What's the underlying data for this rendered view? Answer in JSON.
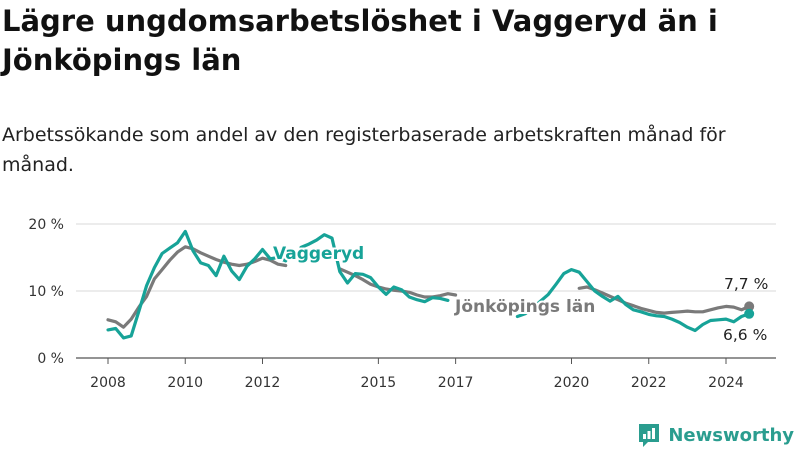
{
  "title": "Lägre ungdomsarbetslöshet i Vaggeryd än i Jönköpings län",
  "subtitle": "Arbetssökande som andel av den registerbaserade arbetskraften månad för månad.",
  "brand": "Newsworthy",
  "colors": {
    "vaggeryd": "#17a398",
    "lan": "#7a7a7a",
    "grid": "#d9d9d9",
    "brand": "#2a9d8f"
  },
  "chart_data": {
    "type": "line",
    "title": "Lägre ungdomsarbetslöshet i Vaggeryd än i Jönköpings län",
    "ylabel": "",
    "xlabel": "",
    "ylim": [
      0,
      20
    ],
    "xlim": [
      2007.7,
      2025.0
    ],
    "y_ticks": [
      0,
      10,
      20
    ],
    "y_tick_labels": [
      "0 %",
      "10 %",
      "20 %"
    ],
    "x_ticks": [
      2008,
      2010,
      2012,
      2015,
      2017,
      2020,
      2022,
      2024
    ],
    "x_tick_labels": [
      "2008",
      "2010",
      "2012",
      "2015",
      "2017",
      "2020",
      "2022",
      "2024"
    ],
    "grid": true,
    "series": [
      {
        "name": "Jönköpings län",
        "label": "Jönköpings län",
        "end_label": "7,7 %",
        "points": [
          [
            2008.0,
            5.7
          ],
          [
            2008.2,
            5.4
          ],
          [
            2008.4,
            4.6
          ],
          [
            2008.6,
            5.8
          ],
          [
            2008.8,
            7.6
          ],
          [
            2009.0,
            9.2
          ],
          [
            2009.2,
            11.8
          ],
          [
            2009.4,
            13.2
          ],
          [
            2009.6,
            14.6
          ],
          [
            2009.8,
            15.8
          ],
          [
            2010.0,
            16.6
          ],
          [
            2010.2,
            16.3
          ],
          [
            2010.4,
            15.7
          ],
          [
            2010.6,
            15.2
          ],
          [
            2010.8,
            14.7
          ],
          [
            2011.0,
            14.3
          ],
          [
            2011.2,
            14.0
          ],
          [
            2011.4,
            13.8
          ],
          [
            2011.6,
            14.0
          ],
          [
            2011.8,
            14.4
          ],
          [
            2012.0,
            14.9
          ],
          [
            2012.2,
            14.6
          ],
          [
            2012.4,
            14.0
          ],
          [
            2012.6,
            13.8
          ],
          [
            2014.0,
            13.3
          ],
          [
            2014.2,
            12.8
          ],
          [
            2014.4,
            12.3
          ],
          [
            2014.6,
            11.7
          ],
          [
            2014.8,
            11.0
          ],
          [
            2015.0,
            10.6
          ],
          [
            2015.2,
            10.3
          ],
          [
            2015.4,
            10.1
          ],
          [
            2015.6,
            10.0
          ],
          [
            2015.8,
            9.8
          ],
          [
            2016.0,
            9.4
          ],
          [
            2016.2,
            9.1
          ],
          [
            2016.4,
            9.1
          ],
          [
            2016.6,
            9.3
          ],
          [
            2016.8,
            9.6
          ],
          [
            2017.0,
            9.4
          ],
          [
            2020.2,
            10.4
          ],
          [
            2020.4,
            10.6
          ],
          [
            2020.6,
            10.2
          ],
          [
            2020.8,
            9.7
          ],
          [
            2021.0,
            9.2
          ],
          [
            2021.2,
            8.7
          ],
          [
            2021.4,
            8.2
          ],
          [
            2021.6,
            7.8
          ],
          [
            2021.8,
            7.4
          ],
          [
            2022.0,
            7.1
          ],
          [
            2022.2,
            6.8
          ],
          [
            2022.4,
            6.7
          ],
          [
            2022.6,
            6.8
          ],
          [
            2022.8,
            6.9
          ],
          [
            2023.0,
            7.0
          ],
          [
            2023.2,
            6.9
          ],
          [
            2023.4,
            6.9
          ],
          [
            2023.6,
            7.2
          ],
          [
            2023.8,
            7.5
          ],
          [
            2024.0,
            7.7
          ],
          [
            2024.2,
            7.6
          ],
          [
            2024.4,
            7.2
          ],
          [
            2024.6,
            7.7
          ]
        ]
      },
      {
        "name": "Vaggeryd",
        "label": "Vaggeryd",
        "end_label": "6,6 %",
        "points": [
          [
            2008.0,
            4.2
          ],
          [
            2008.2,
            4.4
          ],
          [
            2008.4,
            3.0
          ],
          [
            2008.6,
            3.3
          ],
          [
            2008.8,
            7.0
          ],
          [
            2009.0,
            10.8
          ],
          [
            2009.2,
            13.5
          ],
          [
            2009.4,
            15.6
          ],
          [
            2009.6,
            16.4
          ],
          [
            2009.8,
            17.2
          ],
          [
            2010.0,
            18.9
          ],
          [
            2010.2,
            16.0
          ],
          [
            2010.4,
            14.2
          ],
          [
            2010.6,
            13.8
          ],
          [
            2010.8,
            12.3
          ],
          [
            2011.0,
            15.2
          ],
          [
            2011.2,
            13.0
          ],
          [
            2011.4,
            11.7
          ],
          [
            2011.6,
            13.7
          ],
          [
            2011.8,
            14.8
          ],
          [
            2012.0,
            16.2
          ],
          [
            2012.2,
            14.8
          ],
          [
            2012.4,
            15.0
          ],
          [
            2012.6,
            14.5
          ],
          [
            2013.0,
            16.5
          ],
          [
            2013.2,
            17.0
          ],
          [
            2013.4,
            17.6
          ],
          [
            2013.6,
            18.4
          ],
          [
            2013.8,
            17.9
          ],
          [
            2014.0,
            12.9
          ],
          [
            2014.2,
            11.2
          ],
          [
            2014.4,
            12.6
          ],
          [
            2014.6,
            12.5
          ],
          [
            2014.8,
            12.0
          ],
          [
            2015.0,
            10.6
          ],
          [
            2015.2,
            9.5
          ],
          [
            2015.4,
            10.6
          ],
          [
            2015.6,
            10.2
          ],
          [
            2015.8,
            9.1
          ],
          [
            2016.0,
            8.7
          ],
          [
            2016.2,
            8.4
          ],
          [
            2016.4,
            9.0
          ],
          [
            2016.6,
            8.9
          ],
          [
            2016.8,
            8.6
          ],
          [
            2018.6,
            6.2
          ],
          [
            2018.8,
            6.6
          ],
          [
            2019.0,
            7.5
          ],
          [
            2019.2,
            8.5
          ],
          [
            2019.4,
            9.5
          ],
          [
            2019.6,
            11.0
          ],
          [
            2019.8,
            12.6
          ],
          [
            2020.0,
            13.2
          ],
          [
            2020.2,
            12.8
          ],
          [
            2020.4,
            11.4
          ],
          [
            2020.6,
            10.0
          ],
          [
            2020.8,
            9.2
          ],
          [
            2021.0,
            8.5
          ],
          [
            2021.2,
            9.2
          ],
          [
            2021.4,
            8.0
          ],
          [
            2021.6,
            7.2
          ],
          [
            2021.8,
            6.9
          ],
          [
            2022.0,
            6.5
          ],
          [
            2022.2,
            6.3
          ],
          [
            2022.4,
            6.2
          ],
          [
            2022.6,
            5.8
          ],
          [
            2022.8,
            5.3
          ],
          [
            2023.0,
            4.6
          ],
          [
            2023.2,
            4.1
          ],
          [
            2023.4,
            5.0
          ],
          [
            2023.6,
            5.6
          ],
          [
            2023.8,
            5.7
          ],
          [
            2024.0,
            5.8
          ],
          [
            2024.2,
            5.4
          ],
          [
            2024.4,
            6.2
          ],
          [
            2024.6,
            6.6
          ]
        ]
      }
    ]
  }
}
